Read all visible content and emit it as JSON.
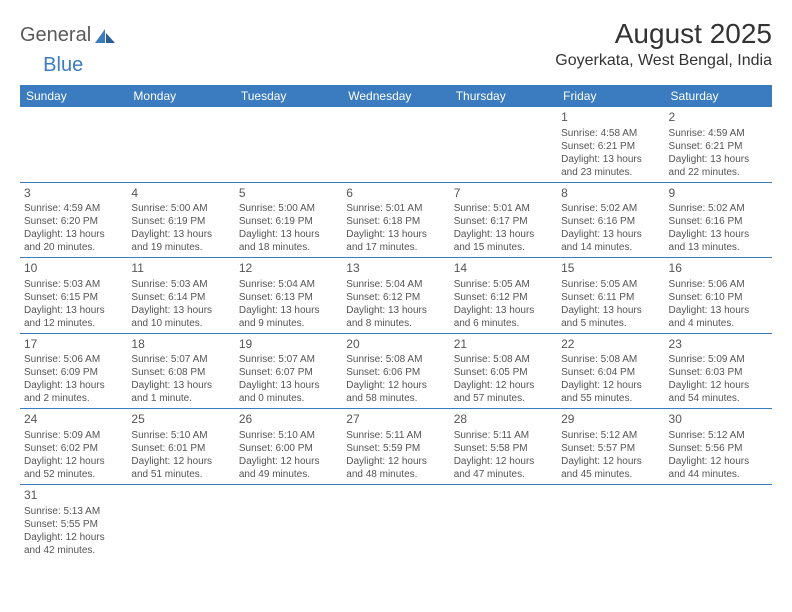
{
  "brand": {
    "part1": "General",
    "part2": "Blue"
  },
  "title": "August 2025",
  "location": "Goyerkata, West Bengal, India",
  "header_bg": "#3b7bbf",
  "header_fg": "#ffffff",
  "border_color": "#3b7bbf",
  "text_color": "#555555",
  "days_of_week": [
    "Sunday",
    "Monday",
    "Tuesday",
    "Wednesday",
    "Thursday",
    "Friday",
    "Saturday"
  ],
  "weeks": [
    [
      null,
      null,
      null,
      null,
      null,
      {
        "n": "1",
        "sunrise": "Sunrise: 4:58 AM",
        "sunset": "Sunset: 6:21 PM",
        "d1": "Daylight: 13 hours",
        "d2": "and 23 minutes."
      },
      {
        "n": "2",
        "sunrise": "Sunrise: 4:59 AM",
        "sunset": "Sunset: 6:21 PM",
        "d1": "Daylight: 13 hours",
        "d2": "and 22 minutes."
      }
    ],
    [
      {
        "n": "3",
        "sunrise": "Sunrise: 4:59 AM",
        "sunset": "Sunset: 6:20 PM",
        "d1": "Daylight: 13 hours",
        "d2": "and 20 minutes."
      },
      {
        "n": "4",
        "sunrise": "Sunrise: 5:00 AM",
        "sunset": "Sunset: 6:19 PM",
        "d1": "Daylight: 13 hours",
        "d2": "and 19 minutes."
      },
      {
        "n": "5",
        "sunrise": "Sunrise: 5:00 AM",
        "sunset": "Sunset: 6:19 PM",
        "d1": "Daylight: 13 hours",
        "d2": "and 18 minutes."
      },
      {
        "n": "6",
        "sunrise": "Sunrise: 5:01 AM",
        "sunset": "Sunset: 6:18 PM",
        "d1": "Daylight: 13 hours",
        "d2": "and 17 minutes."
      },
      {
        "n": "7",
        "sunrise": "Sunrise: 5:01 AM",
        "sunset": "Sunset: 6:17 PM",
        "d1": "Daylight: 13 hours",
        "d2": "and 15 minutes."
      },
      {
        "n": "8",
        "sunrise": "Sunrise: 5:02 AM",
        "sunset": "Sunset: 6:16 PM",
        "d1": "Daylight: 13 hours",
        "d2": "and 14 minutes."
      },
      {
        "n": "9",
        "sunrise": "Sunrise: 5:02 AM",
        "sunset": "Sunset: 6:16 PM",
        "d1": "Daylight: 13 hours",
        "d2": "and 13 minutes."
      }
    ],
    [
      {
        "n": "10",
        "sunrise": "Sunrise: 5:03 AM",
        "sunset": "Sunset: 6:15 PM",
        "d1": "Daylight: 13 hours",
        "d2": "and 12 minutes."
      },
      {
        "n": "11",
        "sunrise": "Sunrise: 5:03 AM",
        "sunset": "Sunset: 6:14 PM",
        "d1": "Daylight: 13 hours",
        "d2": "and 10 minutes."
      },
      {
        "n": "12",
        "sunrise": "Sunrise: 5:04 AM",
        "sunset": "Sunset: 6:13 PM",
        "d1": "Daylight: 13 hours",
        "d2": "and 9 minutes."
      },
      {
        "n": "13",
        "sunrise": "Sunrise: 5:04 AM",
        "sunset": "Sunset: 6:12 PM",
        "d1": "Daylight: 13 hours",
        "d2": "and 8 minutes."
      },
      {
        "n": "14",
        "sunrise": "Sunrise: 5:05 AM",
        "sunset": "Sunset: 6:12 PM",
        "d1": "Daylight: 13 hours",
        "d2": "and 6 minutes."
      },
      {
        "n": "15",
        "sunrise": "Sunrise: 5:05 AM",
        "sunset": "Sunset: 6:11 PM",
        "d1": "Daylight: 13 hours",
        "d2": "and 5 minutes."
      },
      {
        "n": "16",
        "sunrise": "Sunrise: 5:06 AM",
        "sunset": "Sunset: 6:10 PM",
        "d1": "Daylight: 13 hours",
        "d2": "and 4 minutes."
      }
    ],
    [
      {
        "n": "17",
        "sunrise": "Sunrise: 5:06 AM",
        "sunset": "Sunset: 6:09 PM",
        "d1": "Daylight: 13 hours",
        "d2": "and 2 minutes."
      },
      {
        "n": "18",
        "sunrise": "Sunrise: 5:07 AM",
        "sunset": "Sunset: 6:08 PM",
        "d1": "Daylight: 13 hours",
        "d2": "and 1 minute."
      },
      {
        "n": "19",
        "sunrise": "Sunrise: 5:07 AM",
        "sunset": "Sunset: 6:07 PM",
        "d1": "Daylight: 13 hours",
        "d2": "and 0 minutes."
      },
      {
        "n": "20",
        "sunrise": "Sunrise: 5:08 AM",
        "sunset": "Sunset: 6:06 PM",
        "d1": "Daylight: 12 hours",
        "d2": "and 58 minutes."
      },
      {
        "n": "21",
        "sunrise": "Sunrise: 5:08 AM",
        "sunset": "Sunset: 6:05 PM",
        "d1": "Daylight: 12 hours",
        "d2": "and 57 minutes."
      },
      {
        "n": "22",
        "sunrise": "Sunrise: 5:08 AM",
        "sunset": "Sunset: 6:04 PM",
        "d1": "Daylight: 12 hours",
        "d2": "and 55 minutes."
      },
      {
        "n": "23",
        "sunrise": "Sunrise: 5:09 AM",
        "sunset": "Sunset: 6:03 PM",
        "d1": "Daylight: 12 hours",
        "d2": "and 54 minutes."
      }
    ],
    [
      {
        "n": "24",
        "sunrise": "Sunrise: 5:09 AM",
        "sunset": "Sunset: 6:02 PM",
        "d1": "Daylight: 12 hours",
        "d2": "and 52 minutes."
      },
      {
        "n": "25",
        "sunrise": "Sunrise: 5:10 AM",
        "sunset": "Sunset: 6:01 PM",
        "d1": "Daylight: 12 hours",
        "d2": "and 51 minutes."
      },
      {
        "n": "26",
        "sunrise": "Sunrise: 5:10 AM",
        "sunset": "Sunset: 6:00 PM",
        "d1": "Daylight: 12 hours",
        "d2": "and 49 minutes."
      },
      {
        "n": "27",
        "sunrise": "Sunrise: 5:11 AM",
        "sunset": "Sunset: 5:59 PM",
        "d1": "Daylight: 12 hours",
        "d2": "and 48 minutes."
      },
      {
        "n": "28",
        "sunrise": "Sunrise: 5:11 AM",
        "sunset": "Sunset: 5:58 PM",
        "d1": "Daylight: 12 hours",
        "d2": "and 47 minutes."
      },
      {
        "n": "29",
        "sunrise": "Sunrise: 5:12 AM",
        "sunset": "Sunset: 5:57 PM",
        "d1": "Daylight: 12 hours",
        "d2": "and 45 minutes."
      },
      {
        "n": "30",
        "sunrise": "Sunrise: 5:12 AM",
        "sunset": "Sunset: 5:56 PM",
        "d1": "Daylight: 12 hours",
        "d2": "and 44 minutes."
      }
    ],
    [
      {
        "n": "31",
        "sunrise": "Sunrise: 5:13 AM",
        "sunset": "Sunset: 5:55 PM",
        "d1": "Daylight: 12 hours",
        "d2": "and 42 minutes."
      },
      null,
      null,
      null,
      null,
      null,
      null
    ]
  ]
}
